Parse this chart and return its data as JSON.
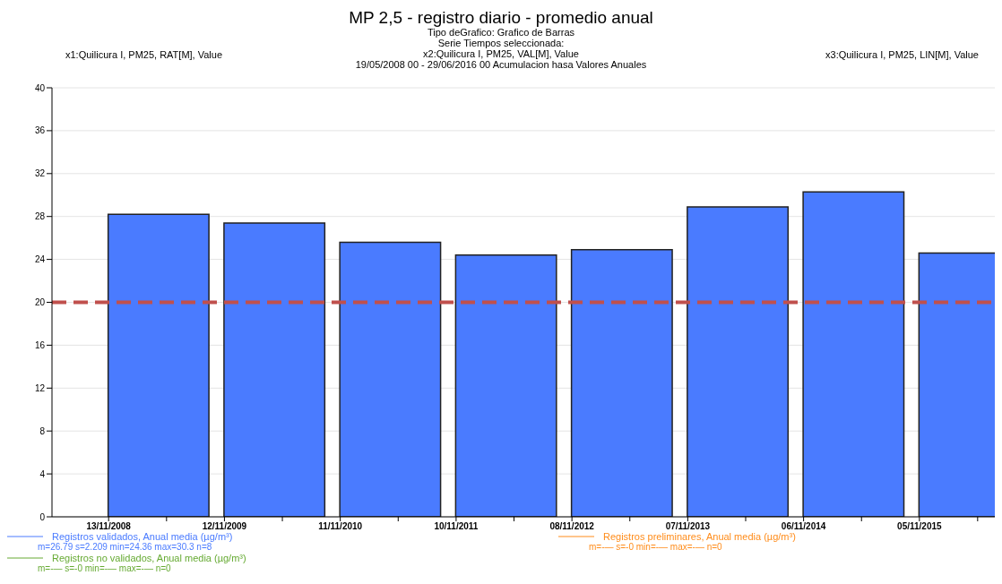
{
  "chart_data": {
    "type": "bar",
    "title": "MP 2,5 - registro diario - promedio anual",
    "subtitle": "Tipo deGrafico: Grafico de Barras\nSerie Tiempos seleccionada:\nx2:Quilicura I, PM25, VAL[M], Value\n19/05/2008 00 - 29/06/2016 00  Acumulacion hasa Valores Anuales",
    "x": [
      "2009-04-20",
      "2010-04-19",
      "2011-04-18",
      "2012-04-16",
      "2013-04-15",
      "2014-04-14",
      "2015-04-13",
      "2016-04-11"
    ],
    "series": [
      {
        "name": "Registros validados, Anual media (µg/m³)",
        "color": "#4a7bff",
        "values": [
          28.2,
          27.4,
          25.6,
          24.4,
          24.9,
          28.9,
          30.3,
          24.6
        ]
      },
      {
        "name": "Registros preliminares, Anual media (µg/m³)",
        "color": "#ff8c1a",
        "values": [
          null,
          null,
          null,
          null,
          null,
          null,
          null,
          null
        ]
      },
      {
        "name": "Registros no validados, Anual media (µg/m³)",
        "color": "#66aa33",
        "values": [
          null,
          null,
          null,
          null,
          null,
          null,
          null,
          null
        ]
      }
    ],
    "annotations": [
      "m=26.79 s=2.209 min=24.36 max=30.3 n=8",
      "m=-— s=-0 min=-— max=-— n=0",
      "m=-— s=-0 min=-— max=-— n=0",
      "x1:Quilicura I, PM25, RAT[M], Value",
      "x3:Quilicura I, PM25, LIN[M], Value"
    ],
    "xlim": [
      "2008-05-19",
      "2016-06-29"
    ],
    "xticks": [
      {
        "value": "2008-11-13",
        "label": "13/11/2008"
      },
      {
        "value": "2009-05-14",
        "label": null
      },
      {
        "value": "2009-11-12",
        "label": "12/11/2009"
      },
      {
        "value": "2010-05-13",
        "label": null
      },
      {
        "value": "2010-11-11",
        "label": "11/11/2010"
      },
      {
        "value": "2011-05-12",
        "label": null
      },
      {
        "value": "2011-11-10",
        "label": "10/11/2011"
      },
      {
        "value": "2012-05-10",
        "label": null
      },
      {
        "value": "2012-11-08",
        "label": "08/11/2012"
      },
      {
        "value": "2013-05-09",
        "label": null
      },
      {
        "value": "2013-11-07",
        "label": "07/11/2013"
      },
      {
        "value": "2014-05-08",
        "label": null
      },
      {
        "value": "2014-11-06",
        "label": "06/11/2014"
      },
      {
        "value": "2015-05-07",
        "label": null
      },
      {
        "value": "2015-11-05",
        "label": "05/11/2015"
      },
      {
        "value": "2016-05-06",
        "label": null
      }
    ],
    "ylim": [
      0,
      40
    ],
    "yticks": [
      0,
      4,
      8,
      12,
      16,
      20,
      24,
      28,
      32,
      36,
      40
    ],
    "grid": "y",
    "legend": "bottom",
    "ref_lines": [
      {
        "axis": "y",
        "value": 20,
        "color": "#c0504d",
        "line_style": "dashed"
      }
    ]
  }
}
